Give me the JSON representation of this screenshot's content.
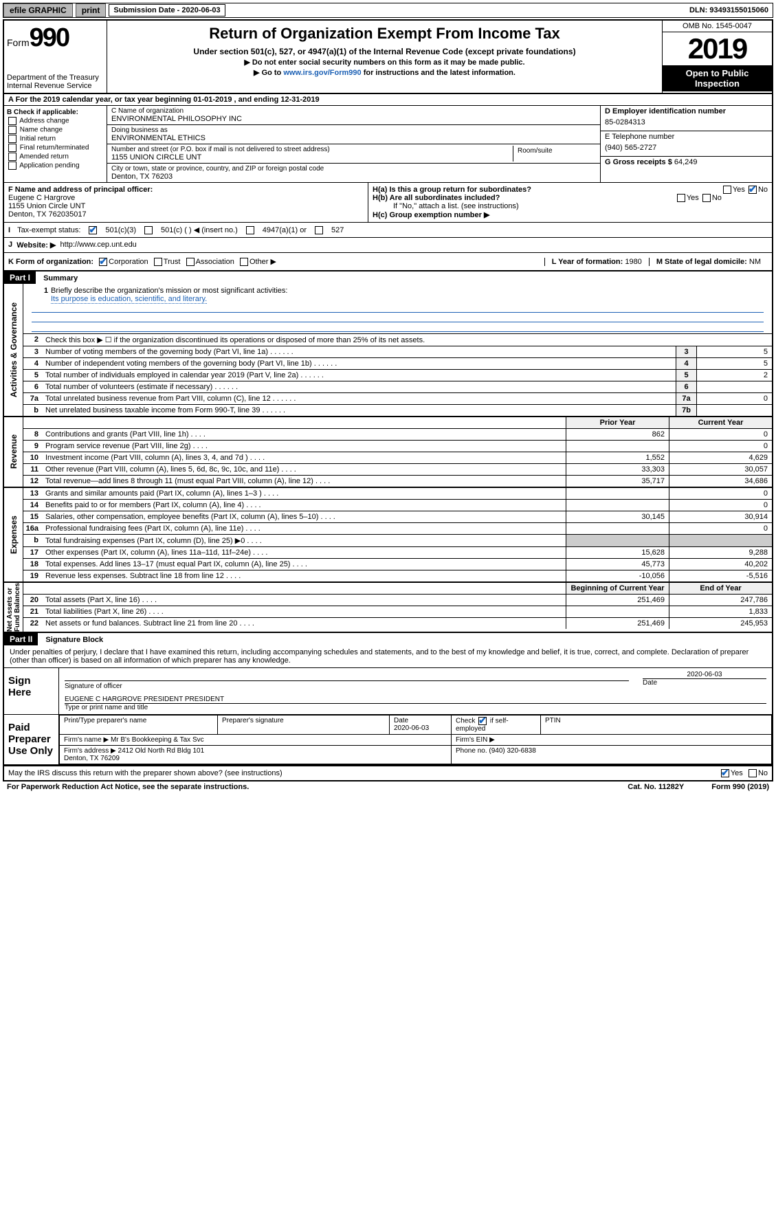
{
  "colors": {
    "link": "#1a5fb4",
    "check": "#1565c0",
    "header_bg": "#000000"
  },
  "topbar": {
    "efile": "efile GRAPHIC",
    "print": "print",
    "submission_label": "Submission Date - ",
    "submission_date": "2020-06-03",
    "dln_label": "DLN: ",
    "dln": "93493155015060"
  },
  "header": {
    "form_label": "Form",
    "form_no": "990",
    "dept": "Department of the Treasury\nInternal Revenue Service",
    "title": "Return of Organization Exempt From Income Tax",
    "subtitle": "Under section 501(c), 527, or 4947(a)(1) of the Internal Revenue Code (except private foundations)",
    "line1": "▶ Do not enter social security numbers on this form as it may be made public.",
    "line2_pre": "▶ Go to ",
    "line2_link": "www.irs.gov/Form990",
    "line2_post": " for instructions and the latest information.",
    "omb": "OMB No. 1545-0047",
    "year": "2019",
    "open": "Open to Public Inspection"
  },
  "period": {
    "text_pre": "A For the 2019 calendar year, or tax year beginning ",
    "begin": "01-01-2019",
    "mid": " , and ending ",
    "end": "12-31-2019"
  },
  "boxB": {
    "label": "B Check if applicable:",
    "items": [
      "Address change",
      "Name change",
      "Initial return",
      "Final return/terminated",
      "Amended return",
      "Application pending"
    ]
  },
  "boxC": {
    "name_label": "C Name of organization",
    "name": "ENVIRONMENTAL PHILOSOPHY INC",
    "dba_label": "Doing business as",
    "dba": "ENVIRONMENTAL ETHICS",
    "street_label": "Number and street (or P.O. box if mail is not delivered to street address)",
    "room_label": "Room/suite",
    "street": "1155 UNION CIRCLE UNT",
    "city_label": "City or town, state or province, country, and ZIP or foreign postal code",
    "city": "Denton, TX  76203"
  },
  "boxD": {
    "label": "D Employer identification number",
    "value": "85-0284313"
  },
  "boxE": {
    "label": "E Telephone number",
    "value": "(940) 565-2727"
  },
  "boxG": {
    "label": "G Gross receipts $ ",
    "value": "64,249"
  },
  "boxF": {
    "label": "F Name and address of principal officer:",
    "name": "Eugene C Hargrove",
    "addr1": "1155 Union Circle UNT",
    "addr2": "Denton, TX  762035017"
  },
  "boxH": {
    "a": "H(a)  Is this a group return for subordinates?",
    "a_yes": "Yes",
    "a_no": "No",
    "b": "H(b)  Are all subordinates included?",
    "b_note": "If \"No,\" attach a list. (see instructions)",
    "c": "H(c)  Group exemption number ▶"
  },
  "boxI": {
    "label": "Tax-exempt status:",
    "opts": [
      "501(c)(3)",
      "501(c) (  ) ◀ (insert no.)",
      "4947(a)(1) or",
      "527"
    ]
  },
  "boxJ": {
    "label": "Website: ▶",
    "value": "http://www.cep.unt.edu"
  },
  "boxK": {
    "label": "K Form of organization:",
    "opts": [
      "Corporation",
      "Trust",
      "Association",
      "Other ▶"
    ],
    "l_label": "L Year of formation: ",
    "l_val": "1980",
    "m_label": "M State of legal domicile: ",
    "m_val": "NM"
  },
  "part1": {
    "hdr": "Part I",
    "title": "Summary",
    "q1": "Briefly describe the organization's mission or most significant activities:",
    "q1_ans": "Its purpose is education, scientific, and literary.",
    "q2": "Check this box ▶ ☐  if the organization discontinued its operations or disposed of more than 25% of its net assets.",
    "rows_gov": [
      {
        "n": "3",
        "d": "Number of voting members of the governing body (Part VI, line 1a)",
        "box": "3",
        "v": "5"
      },
      {
        "n": "4",
        "d": "Number of independent voting members of the governing body (Part VI, line 1b)",
        "box": "4",
        "v": "5"
      },
      {
        "n": "5",
        "d": "Total number of individuals employed in calendar year 2019 (Part V, line 2a)",
        "box": "5",
        "v": "2"
      },
      {
        "n": "6",
        "d": "Total number of volunteers (estimate if necessary)",
        "box": "6",
        "v": ""
      },
      {
        "n": "7a",
        "d": "Total unrelated business revenue from Part VIII, column (C), line 12",
        "box": "7a",
        "v": "0"
      },
      {
        "n": "b",
        "d": "Net unrelated business taxable income from Form 990-T, line 39",
        "box": "7b",
        "v": ""
      }
    ],
    "col_prior": "Prior Year",
    "col_current": "Current Year",
    "rows_rev": [
      {
        "n": "8",
        "d": "Contributions and grants (Part VIII, line 1h)",
        "p": "862",
        "c": "0"
      },
      {
        "n": "9",
        "d": "Program service revenue (Part VIII, line 2g)",
        "p": "",
        "c": "0"
      },
      {
        "n": "10",
        "d": "Investment income (Part VIII, column (A), lines 3, 4, and 7d )",
        "p": "1,552",
        "c": "4,629"
      },
      {
        "n": "11",
        "d": "Other revenue (Part VIII, column (A), lines 5, 6d, 8c, 9c, 10c, and 11e)",
        "p": "33,303",
        "c": "30,057"
      },
      {
        "n": "12",
        "d": "Total revenue—add lines 8 through 11 (must equal Part VIII, column (A), line 12)",
        "p": "35,717",
        "c": "34,686"
      }
    ],
    "rows_exp": [
      {
        "n": "13",
        "d": "Grants and similar amounts paid (Part IX, column (A), lines 1–3 )",
        "p": "",
        "c": "0"
      },
      {
        "n": "14",
        "d": "Benefits paid to or for members (Part IX, column (A), line 4)",
        "p": "",
        "c": "0"
      },
      {
        "n": "15",
        "d": "Salaries, other compensation, employee benefits (Part IX, column (A), lines 5–10)",
        "p": "30,145",
        "c": "30,914"
      },
      {
        "n": "16a",
        "d": "Professional fundraising fees (Part IX, column (A), line 11e)",
        "p": "",
        "c": "0"
      },
      {
        "n": "b",
        "d": "Total fundraising expenses (Part IX, column (D), line 25) ▶0",
        "p": "—",
        "c": "—"
      },
      {
        "n": "17",
        "d": "Other expenses (Part IX, column (A), lines 11a–11d, 11f–24e)",
        "p": "15,628",
        "c": "9,288"
      },
      {
        "n": "18",
        "d": "Total expenses. Add lines 13–17 (must equal Part IX, column (A), line 25)",
        "p": "45,773",
        "c": "40,202"
      },
      {
        "n": "19",
        "d": "Revenue less expenses. Subtract line 18 from line 12",
        "p": "-10,056",
        "c": "-5,516"
      }
    ],
    "col_begin": "Beginning of Current Year",
    "col_end": "End of Year",
    "rows_net": [
      {
        "n": "20",
        "d": "Total assets (Part X, line 16)",
        "p": "251,469",
        "c": "247,786"
      },
      {
        "n": "21",
        "d": "Total liabilities (Part X, line 26)",
        "p": "",
        "c": "1,833"
      },
      {
        "n": "22",
        "d": "Net assets or fund balances. Subtract line 21 from line 20",
        "p": "251,469",
        "c": "245,953"
      }
    ]
  },
  "part2": {
    "hdr": "Part II",
    "title": "Signature Block",
    "perjury": "Under penalties of perjury, I declare that I have examined this return, including accompanying schedules and statements, and to the best of my knowledge and belief, it is true, correct, and complete. Declaration of preparer (other than officer) is based on all information of which preparer has any knowledge.",
    "sign_here": "Sign Here",
    "sig_officer": "Signature of officer",
    "sig_date": "2020-06-03",
    "date_label": "Date",
    "officer_name": "EUGENE C HARGROVE PRESIDENT  PRESIDENT",
    "type_name": "Type or print name and title",
    "paid": "Paid Preparer Use Only",
    "prep_name_label": "Print/Type preparer's name",
    "prep_sig_label": "Preparer's signature",
    "prep_date": "2020-06-03",
    "check_self": "Check ☑ if self-employed",
    "ptin": "PTIN",
    "firm_name_label": "Firm's name    ▶",
    "firm_name": "Mr B's Bookkeeping & Tax Svc",
    "firm_ein": "Firm's EIN ▶",
    "firm_addr_label": "Firm's address ▶",
    "firm_addr": "2412 Old North Rd Bldg 101\nDenton, TX  76209",
    "phone_label": "Phone no. ",
    "phone": "(940) 320-6838"
  },
  "footer": {
    "discuss": "May the IRS discuss this return with the preparer shown above? (see instructions)",
    "yes": "Yes",
    "no": "No",
    "paperwork": "For Paperwork Reduction Act Notice, see the separate instructions.",
    "cat": "Cat. No. 11282Y",
    "form": "Form 990 (2019)"
  }
}
